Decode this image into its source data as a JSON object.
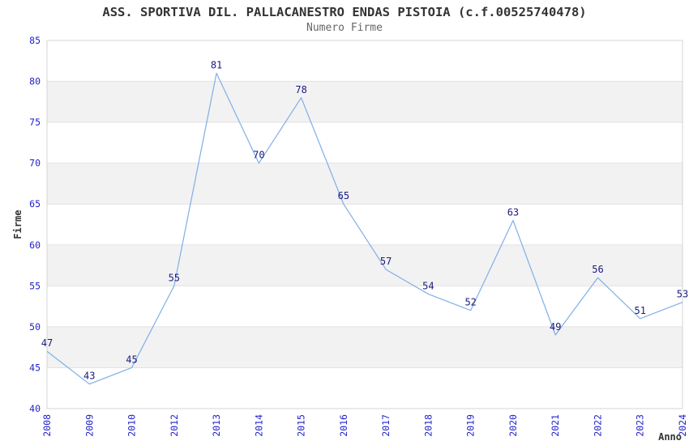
{
  "title": "ASS. SPORTIVA DIL. PALLACANESTRO ENDAS PISTOIA (c.f.00525740478)",
  "subtitle": "Numero Firme",
  "chart_data": {
    "type": "line",
    "title": "ASS. SPORTIVA DIL. PALLACANESTRO ENDAS PISTOIA (c.f.00525740478)",
    "subtitle": "Numero Firme",
    "categories": [
      "2008",
      "2009",
      "2010",
      "2012",
      "2013",
      "2014",
      "2015",
      "2016",
      "2017",
      "2018",
      "2019",
      "2020",
      "2021",
      "2022",
      "2023",
      "2024"
    ],
    "values": [
      47,
      43,
      45,
      55,
      81,
      70,
      78,
      65,
      57,
      54,
      52,
      63,
      49,
      56,
      51,
      53
    ],
    "xlabel": "Anno",
    "ylabel": "Firme",
    "ylim": [
      40,
      85
    ],
    "yticks": [
      40,
      45,
      50,
      55,
      60,
      65,
      70,
      75,
      80,
      85
    ],
    "grid": "horizontal-alternating-bands",
    "legend": "none",
    "data_labels": true,
    "x_tick_rotation": -90,
    "colors": {
      "line": "#7fafe6",
      "data_label": "#1a1a80",
      "tick_label": "#2222cc",
      "band": "#f2f2f2",
      "band_alt": "#ffffff",
      "gridline": "#e2e2e2",
      "plot_border": "#d4d4d4",
      "axis_title": "#333333",
      "title": "#333333",
      "subtitle": "#666666"
    }
  }
}
